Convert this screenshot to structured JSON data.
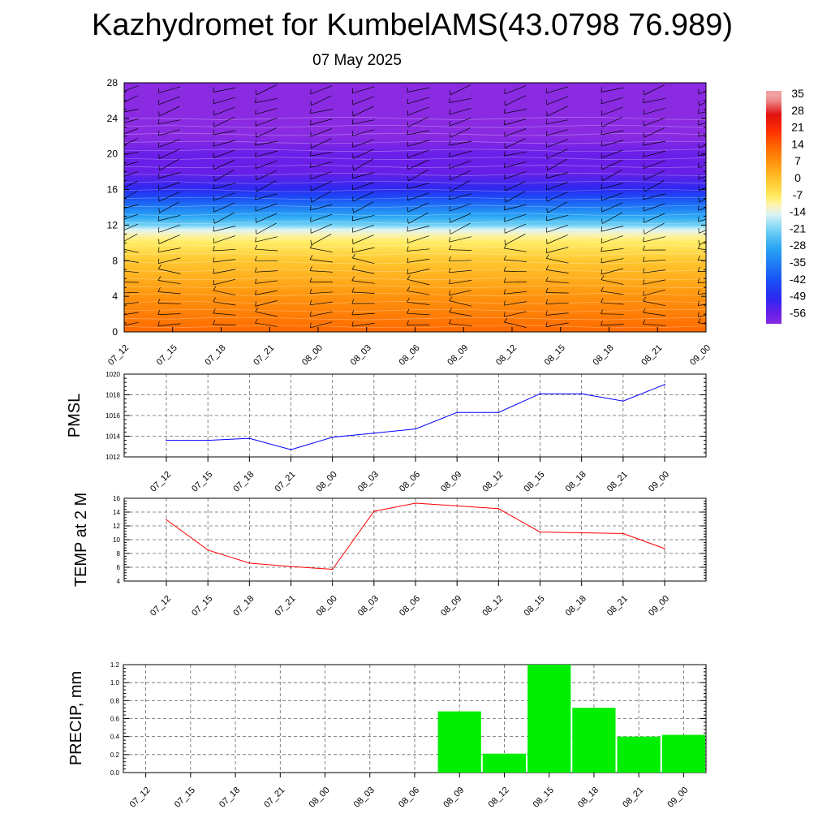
{
  "page": {
    "title": "Kazhydromet for KumbelAMS(43.0798 76.989)",
    "subtitle": "07 May 2025"
  },
  "chart_data": [
    {
      "type": "heatmap",
      "title": "",
      "xlabel": "",
      "ylabel": "",
      "x_ticks": [
        "07_12",
        "07_15",
        "07_18",
        "07_21",
        "08_00",
        "08_03",
        "08_06",
        "08_09",
        "08_12",
        "08_15",
        "08_18",
        "08_21",
        "09_00"
      ],
      "y_ticks": [
        0,
        4,
        8,
        12,
        16,
        20,
        24,
        28
      ],
      "ylim": [
        0,
        28
      ],
      "temperature_by_height": [
        {
          "height": 0,
          "value": 14
        },
        {
          "height": 4,
          "value": 8
        },
        {
          "height": 8,
          "value": 0
        },
        {
          "height": 10.5,
          "value": -8
        },
        {
          "height": 11.5,
          "value": -14
        },
        {
          "height": 12,
          "value": -21
        },
        {
          "height": 14,
          "value": -35
        },
        {
          "height": 16,
          "value": -49
        },
        {
          "height": 18,
          "value": -56
        },
        {
          "height": 20,
          "value": -56
        },
        {
          "height": 22,
          "value": -60
        },
        {
          "height": 28,
          "value": -60
        }
      ],
      "colorbar_labels": [
        "35",
        "28",
        "21",
        "14",
        "7",
        "0",
        "-7",
        "-14",
        "-21",
        "-28",
        "-35",
        "-42",
        "-49",
        "-56"
      ],
      "wind_barbs": true
    },
    {
      "type": "line",
      "title": "",
      "xlabel": "",
      "ylabel": "PMSL",
      "categories": [
        "07_12",
        "07_15",
        "07_18",
        "07_21",
        "08_00",
        "08_03",
        "08_06",
        "08_09",
        "08_12",
        "08_15",
        "08_18",
        "08_21",
        "09_00"
      ],
      "values": [
        1013.6,
        1013.6,
        1013.8,
        1012.7,
        1013.9,
        1014.3,
        1014.7,
        1016.3,
        1016.3,
        1018.1,
        1018.1,
        1017.4,
        1019.0
      ],
      "ylim": [
        1012,
        1020
      ],
      "y_ticks": [
        "1012",
        "1014",
        "1016",
        "1018",
        "1020"
      ],
      "color": "#0000ff",
      "grid": true
    },
    {
      "type": "line",
      "title": "",
      "xlabel": "",
      "ylabel": "TEMP at 2 M",
      "categories": [
        "07_12",
        "07_15",
        "07_18",
        "07_21",
        "08_00",
        "08_03",
        "08_06",
        "08_09",
        "08_12",
        "08_15",
        "08_18",
        "08_21",
        "09_00"
      ],
      "values": [
        12.9,
        8.5,
        6.6,
        6.1,
        5.7,
        14.1,
        15.3,
        14.9,
        14.5,
        11.1,
        11.0,
        10.9,
        8.7
      ],
      "ylim": [
        4,
        16
      ],
      "y_ticks": [
        "4",
        "6",
        "8",
        "10",
        "12",
        "14",
        "16"
      ],
      "color": "#ff0000",
      "grid": true
    },
    {
      "type": "bar",
      "title": "",
      "xlabel": "",
      "ylabel": "PRECIP, mm",
      "categories": [
        "07_12",
        "07_15",
        "07_18",
        "07_21",
        "08_00",
        "08_03",
        "08_06",
        "08_09",
        "08_12",
        "08_15",
        "08_18",
        "08_21",
        "09_00"
      ],
      "values": [
        0,
        0,
        0,
        0,
        0,
        0,
        0,
        0.68,
        0.21,
        1.2,
        0.72,
        0.4,
        0.42
      ],
      "ylim": [
        0,
        1.2
      ],
      "y_ticks": [
        "0.0",
        "0.2",
        "0.4",
        "0.6",
        "0.8",
        "1.0",
        "1.2"
      ],
      "color": "#00ee00",
      "grid": true
    }
  ]
}
